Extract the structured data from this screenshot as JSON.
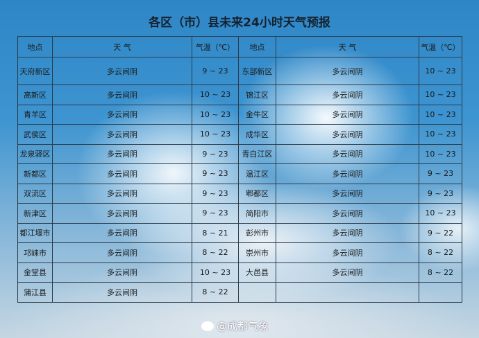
{
  "title": "各区（市）县未来24小时天气预报",
  "headers": {
    "location": "地点",
    "weather": "天 气",
    "temp": "气温（℃）"
  },
  "rows": [
    [
      {
        "loc": "天府新区",
        "w": "多云间阴",
        "t": "9 ~ 23"
      },
      {
        "loc": "东部新区",
        "w": "多云间阴",
        "t": "10 ~ 23"
      }
    ],
    [
      {
        "loc": "高新区",
        "w": "多云间阴",
        "t": "10 ~ 23"
      },
      {
        "loc": "锦江区",
        "w": "多云间阴",
        "t": "10 ~ 23"
      }
    ],
    [
      {
        "loc": "青羊区",
        "w": "多云间阴",
        "t": "10 ~ 23"
      },
      {
        "loc": "金牛区",
        "w": "多云间阴",
        "t": "10 ~ 23"
      }
    ],
    [
      {
        "loc": "武侯区",
        "w": "多云间阴",
        "t": "10 ~ 23"
      },
      {
        "loc": "成华区",
        "w": "多云间阴",
        "t": "10 ~ 23"
      }
    ],
    [
      {
        "loc": "龙泉驿区",
        "w": "多云间阴",
        "t": "9 ~ 23"
      },
      {
        "loc": "青白江区",
        "w": "多云间阴",
        "t": "10 ~ 23"
      }
    ],
    [
      {
        "loc": "新都区",
        "w": "多云间阴",
        "t": "9 ~ 23"
      },
      {
        "loc": "温江区",
        "w": "多云间阴",
        "t": "9 ~ 23"
      }
    ],
    [
      {
        "loc": "双流区",
        "w": "多云间阴",
        "t": "9 ~ 23"
      },
      {
        "loc": "郫都区",
        "w": "多云间阴",
        "t": "9 ~ 23"
      }
    ],
    [
      {
        "loc": "新津区",
        "w": "多云间阴",
        "t": "9 ~ 23"
      },
      {
        "loc": "简阳市",
        "w": "多云间阴",
        "t": "10 ~ 23"
      }
    ],
    [
      {
        "loc": "都江堰市",
        "w": "多云间阴",
        "t": "8 ~ 21"
      },
      {
        "loc": "彭州市",
        "w": "多云间阴",
        "t": "9 ~ 22"
      }
    ],
    [
      {
        "loc": "邛崃市",
        "w": "多云间阴",
        "t": "8 ~ 22"
      },
      {
        "loc": "崇州市",
        "w": "多云间阴",
        "t": "8 ~ 22"
      }
    ],
    [
      {
        "loc": "金堂县",
        "w": "多云间阴",
        "t": "10 ~ 23"
      },
      {
        "loc": "大邑县",
        "w": "多云间阴",
        "t": "8 ~ 22"
      }
    ],
    [
      {
        "loc": "蒲江县",
        "w": "多云间阴",
        "t": "8 ~ 22"
      },
      {
        "loc": "",
        "w": "",
        "t": ""
      }
    ]
  ],
  "watermark": "@成都气象",
  "watermark_icon": "weibo-icon"
}
